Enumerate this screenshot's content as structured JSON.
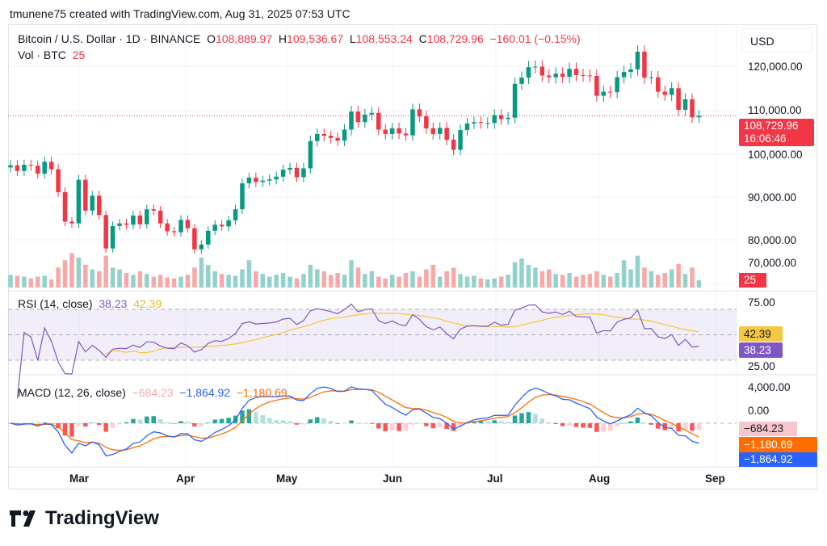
{
  "credit": "tmunene75 created with TradingView.com, Aug 31, 2025 07:53 UTC",
  "legend": {
    "symbol": "Bitcoin / U.S. Dollar · 1D · BINANCE",
    "o_label": "O",
    "o": "108,889.97",
    "h_label": "H",
    "h": "109,536.67",
    "l_label": "L",
    "l": "108,553.24",
    "c_label": "C",
    "c": "108,729.96",
    "change": "−160.01 (−0.15%)",
    "vol_label": "Vol · BTC",
    "vol": "25"
  },
  "currency": "USD",
  "price_tag": {
    "price": "108,729.96",
    "countdown": "16:06:46"
  },
  "vol_tag": "25",
  "rsi": {
    "label": "RSI (14, close)",
    "value": "38.23",
    "ma": "42.39",
    "ticks": [
      "75.00",
      "25.00"
    ]
  },
  "macd": {
    "label": "MACD (12, 26, close)",
    "hist": "−684.23",
    "macd": "−1,864.92",
    "signal": "−1,180.69",
    "ticks": [
      "4,000.00",
      "0.00"
    ]
  },
  "brand": "TradingView",
  "colors": {
    "up": "#089981",
    "down": "#f23645",
    "vol_up": "#92d2cc",
    "vol_down": "#f7a9a7",
    "rsi": "#7e57c2",
    "rsi_ma": "#f5c842",
    "macd": "#2962ff",
    "signal": "#ff6d00"
  },
  "chart_data": {
    "type": "candlestick",
    "y_ticks": [
      "120,000.00",
      "110,000.00",
      "100,000.00",
      "90,000.00",
      "80,000.00",
      "70,000.00"
    ],
    "x_ticks": [
      "Mar",
      "Apr",
      "May",
      "Jun",
      "Jul",
      "Aug",
      "Sep"
    ],
    "ylim": [
      70000,
      125000
    ],
    "grid": true,
    "dates": [
      "2025-02-10",
      "2025-02-12",
      "2025-02-14",
      "2025-02-16",
      "2025-02-18",
      "2025-02-20",
      "2025-02-22",
      "2025-02-24",
      "2025-02-26",
      "2025-02-28",
      "2025-03-02",
      "2025-03-04",
      "2025-03-06",
      "2025-03-08",
      "2025-03-10",
      "2025-03-12",
      "2025-03-14",
      "2025-03-16",
      "2025-03-18",
      "2025-03-20",
      "2025-03-22",
      "2025-03-24",
      "2025-03-26",
      "2025-03-28",
      "2025-03-30",
      "2025-04-01",
      "2025-04-03",
      "2025-04-05",
      "2025-04-07",
      "2025-04-09",
      "2025-04-11",
      "2025-04-13",
      "2025-04-15",
      "2025-04-17",
      "2025-04-19",
      "2025-04-21",
      "2025-04-23",
      "2025-04-25",
      "2025-04-27",
      "2025-04-29",
      "2025-05-01",
      "2025-05-03",
      "2025-05-05",
      "2025-05-07",
      "2025-05-09",
      "2025-05-11",
      "2025-05-13",
      "2025-05-15",
      "2025-05-17",
      "2025-05-19",
      "2025-05-21",
      "2025-05-23",
      "2025-05-25",
      "2025-05-27",
      "2025-05-29",
      "2025-05-31",
      "2025-06-02",
      "2025-06-04",
      "2025-06-06",
      "2025-06-08",
      "2025-06-10",
      "2025-06-12",
      "2025-06-14",
      "2025-06-16",
      "2025-06-18",
      "2025-06-20",
      "2025-06-22",
      "2025-06-24",
      "2025-06-26",
      "2025-06-28",
      "2025-06-30",
      "2025-07-02",
      "2025-07-04",
      "2025-07-06",
      "2025-07-08",
      "2025-07-10",
      "2025-07-12",
      "2025-07-14",
      "2025-07-16",
      "2025-07-18",
      "2025-07-20",
      "2025-07-22",
      "2025-07-24",
      "2025-07-26",
      "2025-07-28",
      "2025-07-30",
      "2025-08-01",
      "2025-08-03",
      "2025-08-05",
      "2025-08-07",
      "2025-08-09",
      "2025-08-11",
      "2025-08-13",
      "2025-08-15",
      "2025-08-17",
      "2025-08-19",
      "2025-08-21",
      "2025-08-23",
      "2025-08-25",
      "2025-08-27",
      "2025-08-29",
      "2025-08-31"
    ],
    "close": [
      97500,
      96200,
      97600,
      97400,
      95600,
      98300,
      96600,
      91400,
      84700,
      84300,
      94200,
      87200,
      90600,
      86200,
      78600,
      83700,
      84300,
      84000,
      86100,
      84100,
      87500,
      87200,
      84300,
      82500,
      82300,
      85100,
      83200,
      78400,
      79500,
      82600,
      84000,
      83600,
      85000,
      87500,
      93400,
      94700,
      93700,
      94000,
      94300,
      94900,
      96500,
      96900,
      94800,
      96800,
      103000,
      104600,
      104200,
      103700,
      103100,
      105600,
      109700,
      107300,
      109000,
      109400,
      105600,
      104600,
      105900,
      104700,
      104300,
      110200,
      108600,
      105900,
      104600,
      106000,
      103300,
      101000,
      105500,
      107000,
      107300,
      107100,
      107100,
      108900,
      108000,
      108300,
      116000,
      117400,
      119800,
      119900,
      117900,
      117500,
      118300,
      117600,
      119400,
      118000,
      117900,
      117800,
      113300,
      114200,
      114100,
      117500,
      118700,
      119300,
      123300,
      117400,
      117500,
      114200,
      113500,
      115000,
      110100,
      112500,
      108400,
      108730
    ],
    "volume": [
      14000,
      13000,
      12000,
      10000,
      12000,
      13000,
      9000,
      22000,
      30000,
      38000,
      33000,
      25000,
      20000,
      18000,
      35000,
      22000,
      20000,
      16000,
      14000,
      18000,
      15000,
      12000,
      14000,
      11000,
      10000,
      12000,
      14000,
      22000,
      33000,
      25000,
      18000,
      15000,
      14000,
      13000,
      20000,
      30000,
      18000,
      15000,
      12000,
      14000,
      16000,
      12000,
      10000,
      15000,
      25000,
      20000,
      18000,
      14000,
      16000,
      14000,
      30000,
      22000,
      15000,
      18000,
      12000,
      10000,
      14000,
      12000,
      16000,
      18000,
      12000,
      20000,
      25000,
      12000,
      18000,
      22000,
      15000,
      12000,
      13000,
      10000,
      9000,
      10000,
      12000,
      14000,
      28000,
      32000,
      25000,
      22000,
      18000,
      20000,
      15000,
      14000,
      16000,
      12000,
      14000,
      15000,
      18000,
      14000,
      12000,
      16000,
      30000,
      20000,
      35000,
      22000,
      18000,
      14000,
      16000,
      20000,
      26000,
      15000,
      22000,
      8000
    ]
  }
}
